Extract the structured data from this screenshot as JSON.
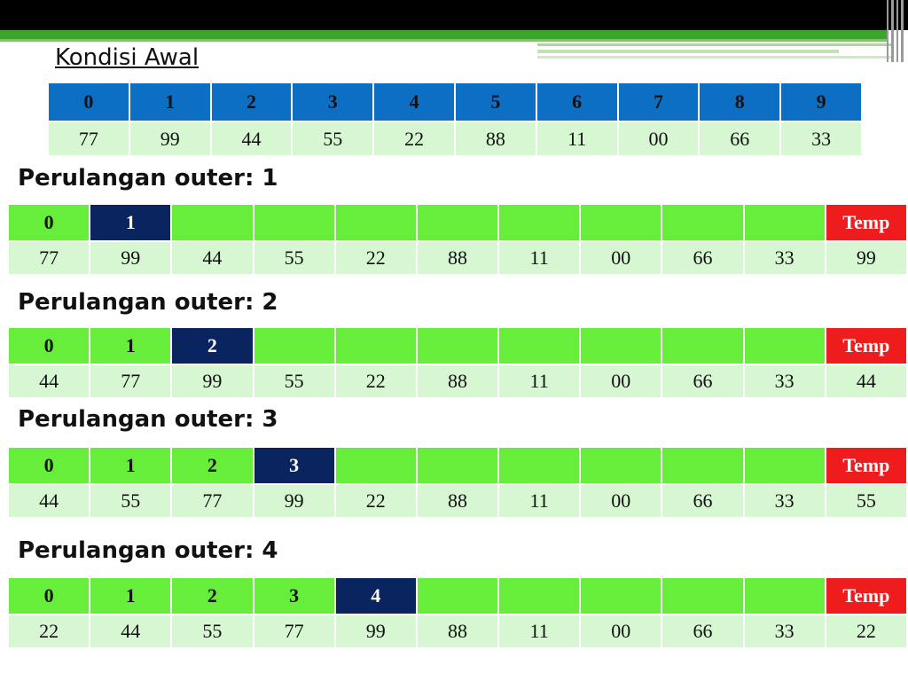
{
  "colors": {
    "header_blue": "#0d6fc4",
    "header_green": "#66ee3a",
    "active_navy": "#0a2460",
    "temp_red": "#ee1c1c",
    "cell_light_green": "#d7f7d2"
  },
  "initial": {
    "title": "Kondisi Awal",
    "indices": [
      "0",
      "1",
      "2",
      "3",
      "4",
      "5",
      "6",
      "7",
      "8",
      "9"
    ],
    "values": [
      "77",
      "99",
      "44",
      "55",
      "22",
      "88",
      "11",
      "00",
      "66",
      "33"
    ]
  },
  "passes": [
    {
      "title": "Perulangan outer: 1",
      "active_index": 1,
      "indices": [
        "0",
        "1",
        "",
        "",
        "",
        "",
        "",
        "",
        "",
        ""
      ],
      "temp_label": "Temp",
      "values": [
        "77",
        "99",
        "44",
        "55",
        "22",
        "88",
        "11",
        "00",
        "66",
        "33"
      ],
      "temp_value": "99"
    },
    {
      "title": "Perulangan outer: 2",
      "active_index": 2,
      "indices": [
        "0",
        "1",
        "2",
        "",
        "",
        "",
        "",
        "",
        "",
        ""
      ],
      "temp_label": "Temp",
      "values": [
        "44",
        "77",
        "99",
        "55",
        "22",
        "88",
        "11",
        "00",
        "66",
        "33"
      ],
      "temp_value": "44"
    },
    {
      "title": "Perulangan outer: 3",
      "active_index": 3,
      "indices": [
        "0",
        "1",
        "2",
        "3",
        "",
        "",
        "",
        "",
        "",
        ""
      ],
      "temp_label": "Temp",
      "values": [
        "44",
        "55",
        "77",
        "99",
        "22",
        "88",
        "11",
        "00",
        "66",
        "33"
      ],
      "temp_value": "55"
    },
    {
      "title": "Perulangan outer: 4",
      "active_index": 4,
      "indices": [
        "0",
        "1",
        "2",
        "3",
        "4",
        "",
        "",
        "",
        "",
        ""
      ],
      "temp_label": "Temp",
      "values": [
        "22",
        "44",
        "55",
        "77",
        "99",
        "88",
        "11",
        "00",
        "66",
        "33"
      ],
      "temp_value": "22"
    }
  ]
}
